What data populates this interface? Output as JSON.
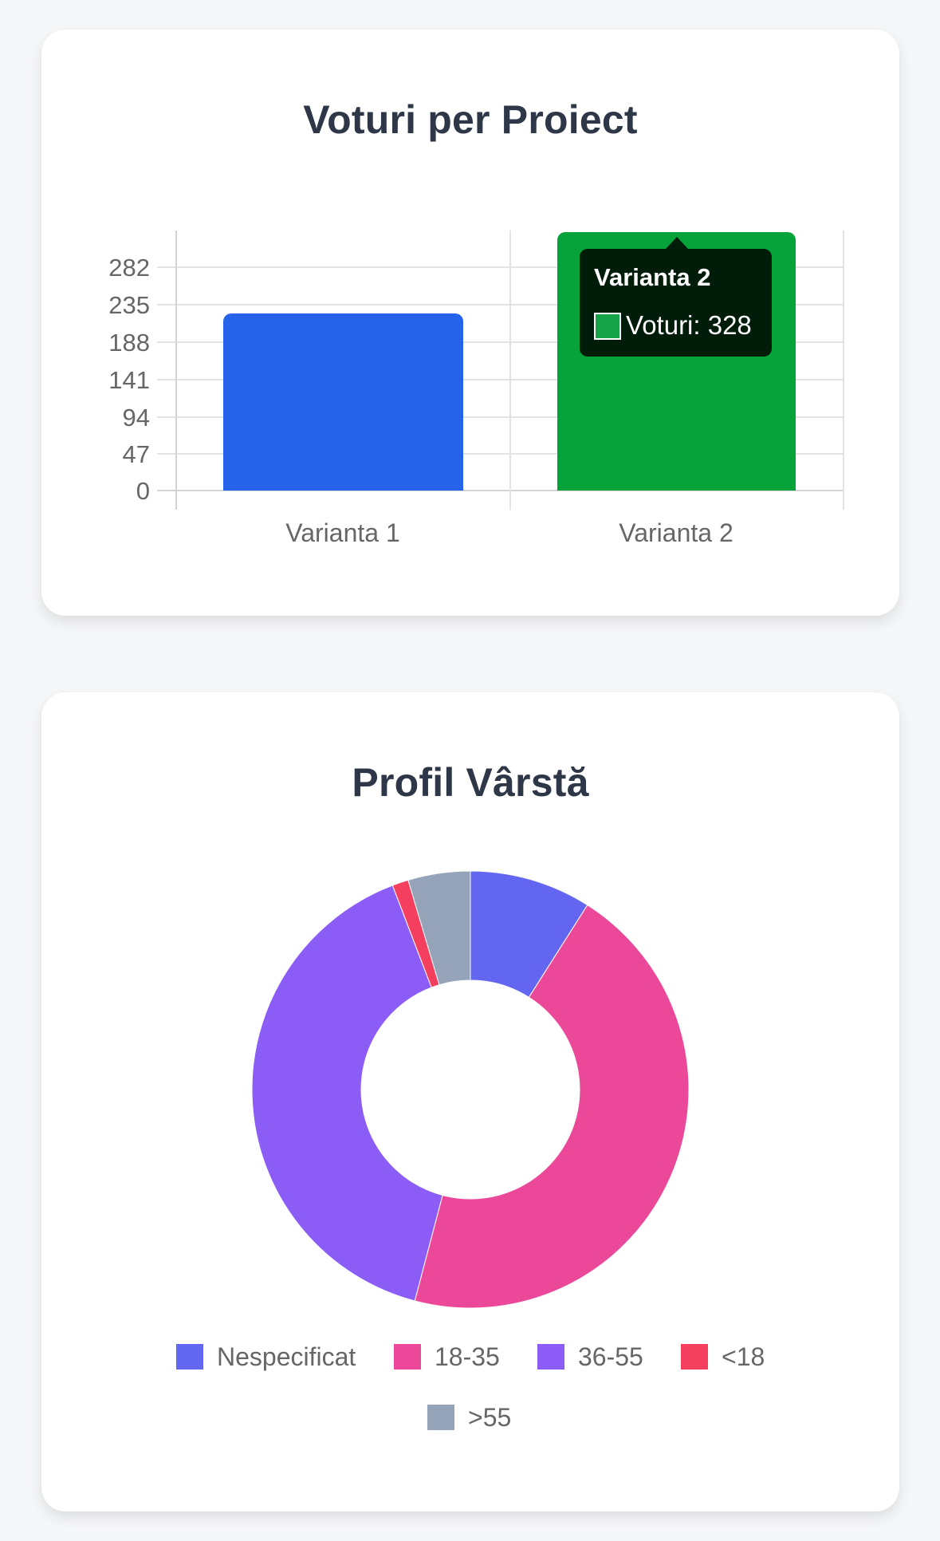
{
  "cards": {
    "votes": {
      "title": "Voturi per Proiect",
      "y_ticks": [
        "282",
        "235",
        "188",
        "141",
        "94",
        "47",
        "0"
      ],
      "x_labels": [
        "Varianta 1",
        "Varianta 2"
      ],
      "tooltip": {
        "title": "Varianta 2",
        "body": "Voturi: 328"
      }
    },
    "age": {
      "title": "Profil Vârstă",
      "legend": [
        {
          "label": "Nespecificat",
          "color": "#6366f1"
        },
        {
          "label": "18-35",
          "color": "#ec4899"
        },
        {
          "label": "36-55",
          "color": "#8b5cf6"
        },
        {
          "label": "<18",
          "color": "#f43f5e"
        },
        {
          "label": ">55",
          "color": "#94a3b8"
        }
      ]
    }
  },
  "chart_data": [
    {
      "type": "bar",
      "title": "Voturi per Proiect",
      "categories": [
        "Varianta 1",
        "Varianta 2"
      ],
      "series": [
        {
          "name": "Voturi",
          "values": [
            224,
            328
          ]
        }
      ],
      "colors": [
        "#2563eb",
        "#16a34a"
      ],
      "xlabel": "",
      "ylabel": "",
      "y_ticks": [
        0,
        47,
        94,
        141,
        188,
        235,
        282
      ],
      "ylim": [
        0,
        328
      ],
      "grid": true,
      "legend": "none",
      "annotations": [
        {
          "type": "tooltip",
          "category": "Varianta 2",
          "text": "Voturi: 328"
        }
      ]
    },
    {
      "type": "pie",
      "subtype": "doughnut",
      "title": "Profil Vârstă",
      "categories": [
        "Nespecificat",
        "18-35",
        "36-55",
        "<18",
        ">55"
      ],
      "values": [
        9.0,
        45.1,
        40.1,
        1.2,
        4.6
      ],
      "value_unit": "percent (estimated)",
      "colors": [
        "#6366f1",
        "#ec4899",
        "#8b5cf6",
        "#f43f5e",
        "#94a3b8"
      ],
      "legend": "bottom"
    }
  ]
}
